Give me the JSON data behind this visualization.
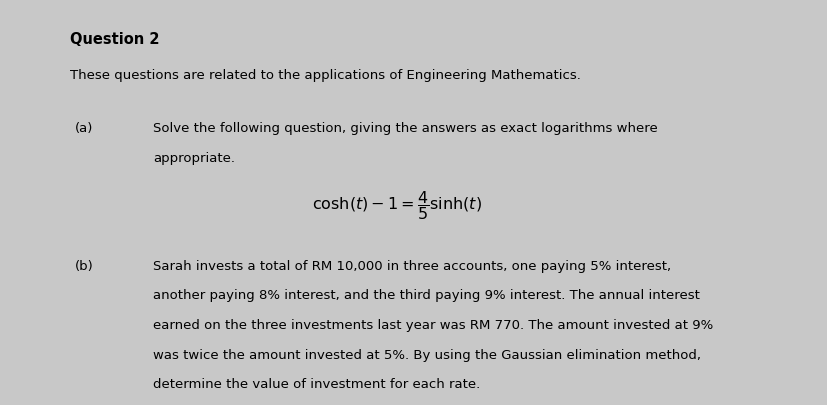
{
  "bg_color": "#c8c8c8",
  "box_color": "#ffffff",
  "title": "Question 2",
  "subtitle": "These questions are related to the applications of Engineering Mathematics.",
  "part_a_label": "(a)",
  "part_a_text_line1": "Solve the following question, giving the answers as exact logarithms where",
  "part_a_text_line2": "appropriate.",
  "equation": "$\\cosh(t) - 1 = \\dfrac{4}{5}\\sinh(t)$",
  "part_b_label": "(b)",
  "part_b_text_line1": "Sarah invests a total of RM 10,000 in three accounts, one paying 5% interest,",
  "part_b_text_line2": "another paying 8% interest, and the third paying 9% interest. The annual interest",
  "part_b_text_line3": "earned on the three investments last year was RM 770. The amount invested at 9%",
  "part_b_text_line4": "was twice the amount invested at 5%. By using the Gaussian elimination method,",
  "part_b_text_line5": "determine the value of investment for each rate.",
  "font_size_title": 10.5,
  "font_size_text": 9.5,
  "font_size_eq": 11.5
}
